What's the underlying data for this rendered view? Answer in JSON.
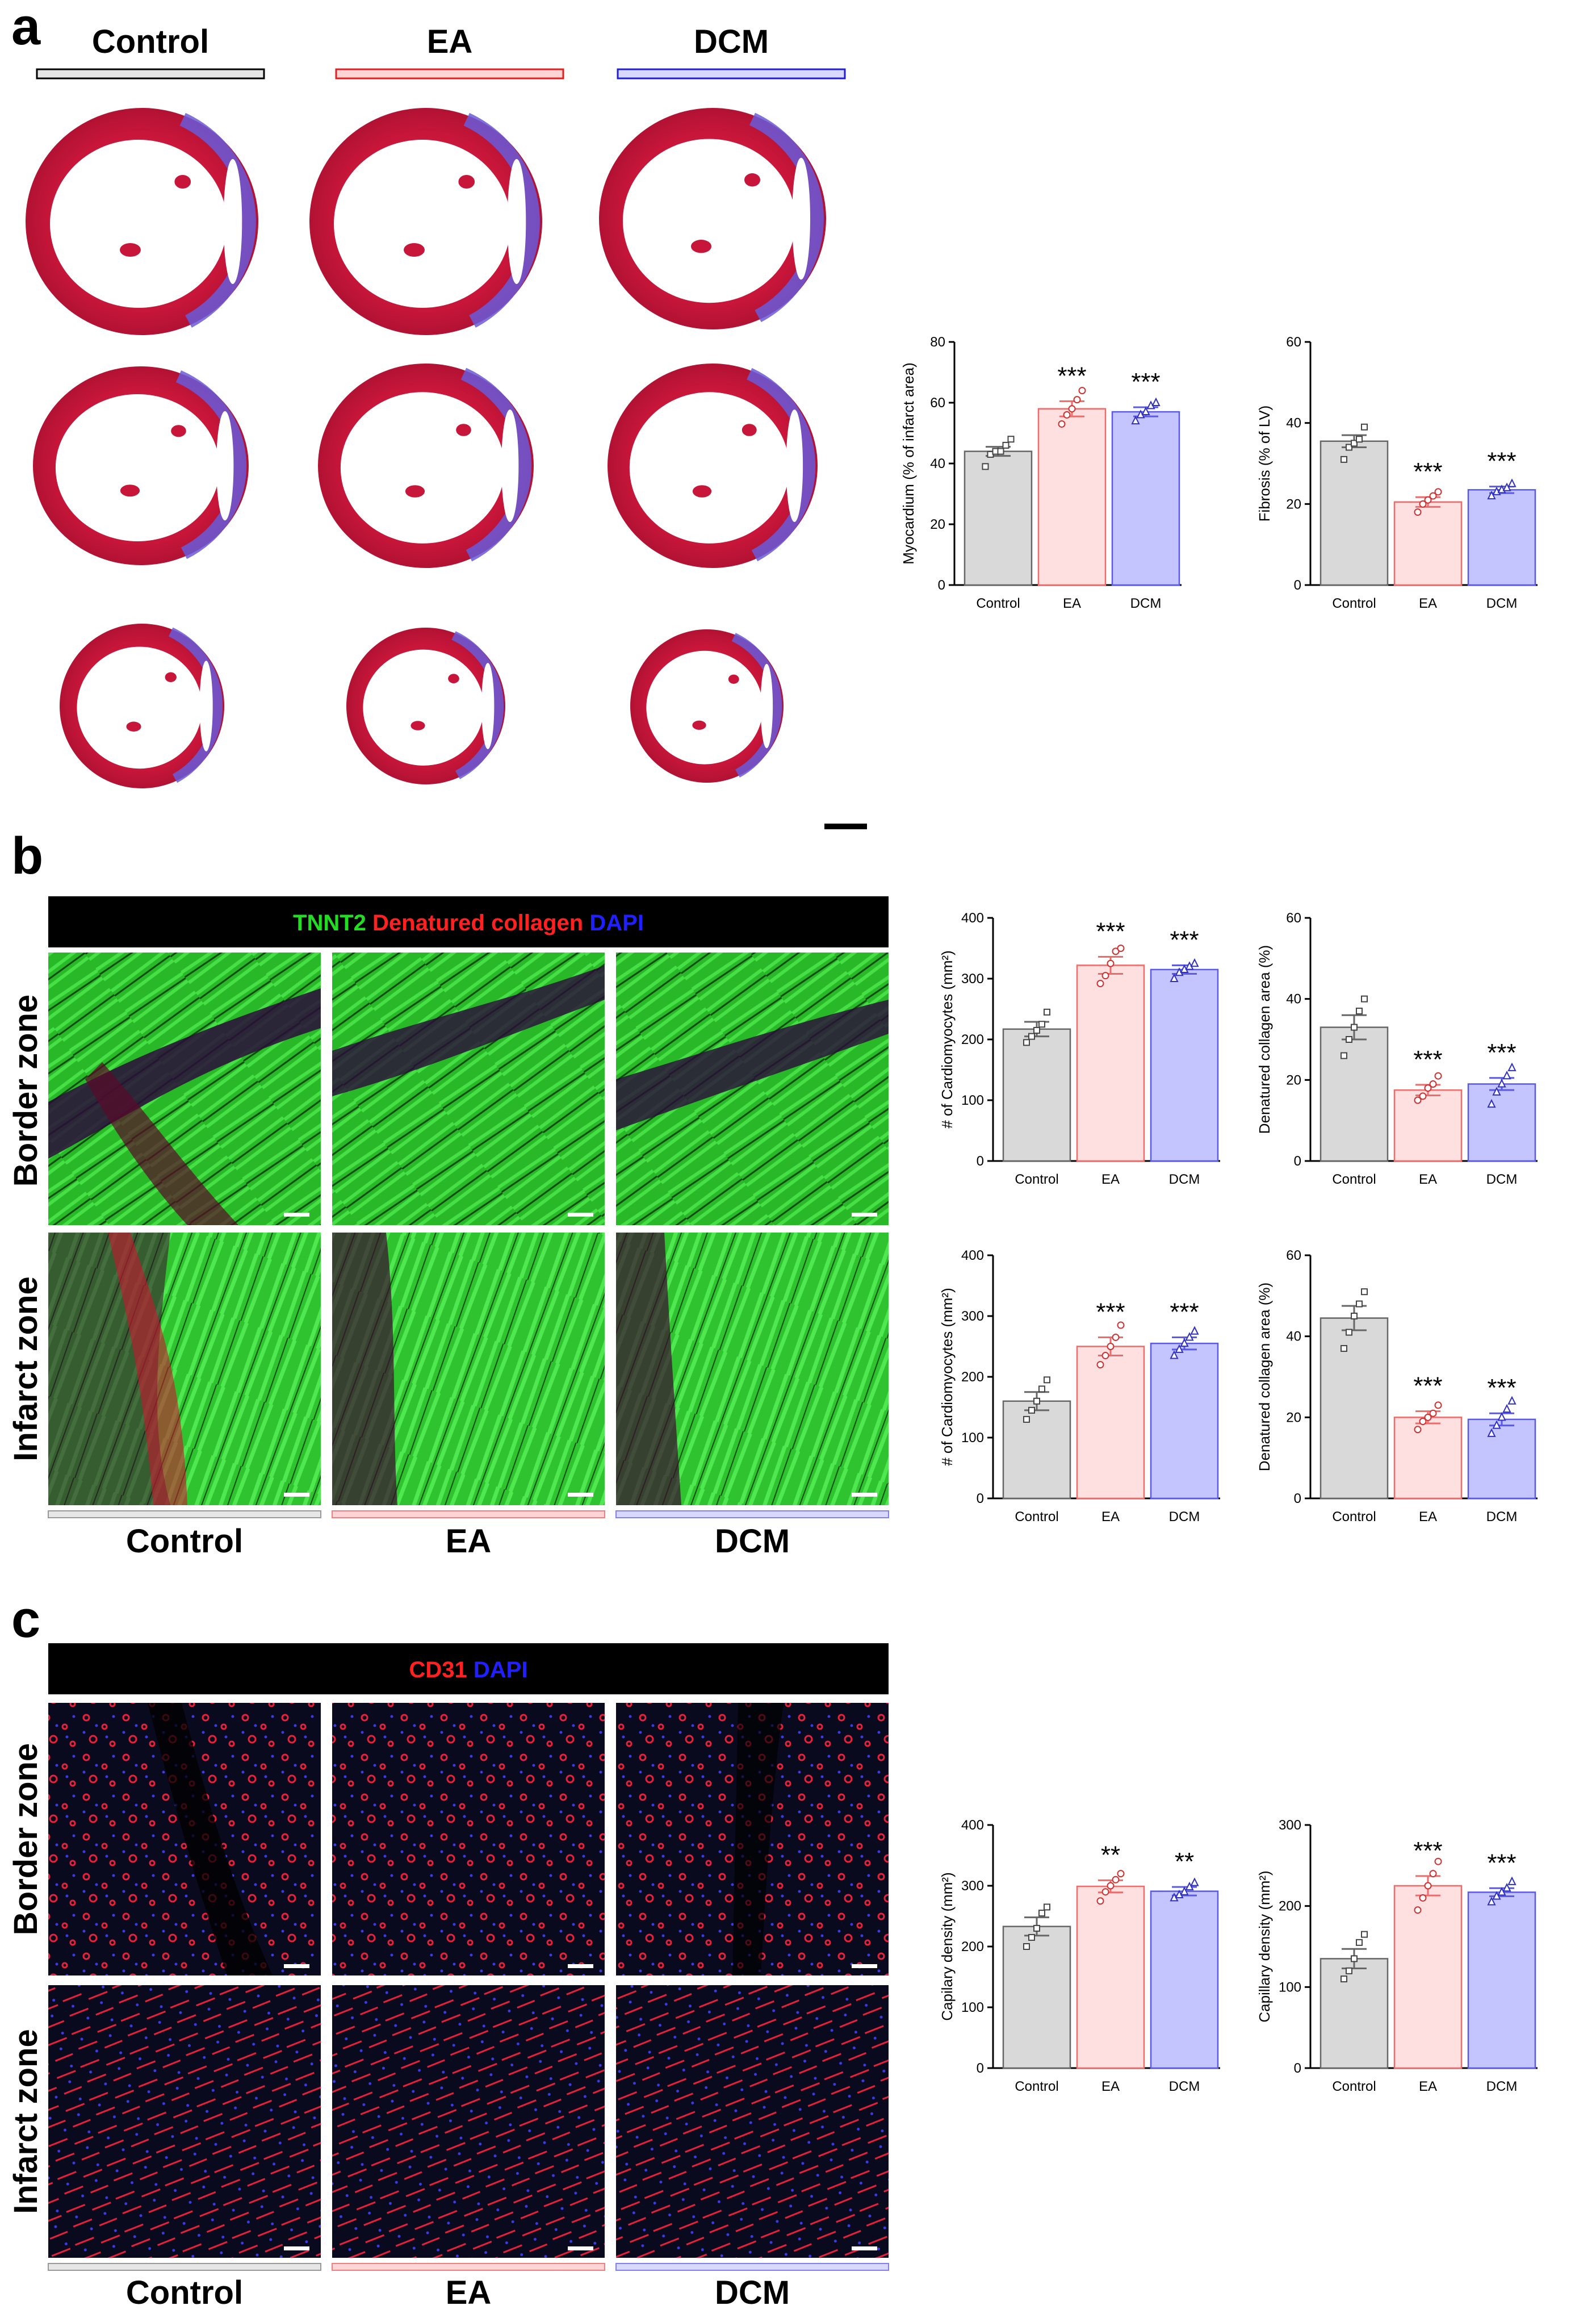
{
  "panels": {
    "a": "a",
    "b": "b",
    "c": "c"
  },
  "groups": [
    "Control",
    "EA",
    "DCM"
  ],
  "zones": {
    "border": "Border zone",
    "infarct": "Infarct zone"
  },
  "stains": {
    "b": [
      {
        "text": "TNNT2",
        "color": "#22dd22"
      },
      {
        "text": "Denatured collagen",
        "color": "#ff2020"
      },
      {
        "text": "DAPI",
        "color": "#2020ff"
      }
    ],
    "c": [
      {
        "text": "CD31",
        "color": "#ff2020"
      },
      {
        "text": "DAPI",
        "color": "#2020ff"
      }
    ]
  },
  "colors": {
    "control": "#bfbfbf",
    "control_bar": "#d9d9d9",
    "ea": "#f06a6a",
    "ea_bar": "#ffe0e0",
    "dcm": "#5a5ae6",
    "dcm_bar": "#c4c4ff",
    "tissue_red": "#c8163a",
    "tissue_blue": "#5a4fd0",
    "tnnt2_green": "#2fc42f",
    "cd31_red": "#e8203a"
  },
  "chart_data": [
    {
      "id": "a1",
      "type": "bar",
      "ylabel": "Myocardium (% of infarct area)",
      "ylim": [
        0,
        80
      ],
      "yticks": [
        0,
        20,
        40,
        60,
        80
      ],
      "categories": [
        "Control",
        "EA",
        "DCM"
      ],
      "values": [
        44,
        58,
        57
      ],
      "errors": [
        1.5,
        2.5,
        1.5
      ],
      "significance": [
        "",
        "***",
        "***"
      ],
      "points": [
        [
          39,
          43,
          44,
          44,
          46,
          48
        ],
        [
          53,
          56,
          58,
          61,
          64
        ],
        [
          54,
          56,
          57,
          59,
          60
        ]
      ]
    },
    {
      "id": "a2",
      "type": "bar",
      "ylabel": "Fibrosis (% of LV)",
      "ylim": [
        0,
        60
      ],
      "yticks": [
        0,
        20,
        40,
        60
      ],
      "categories": [
        "Control",
        "EA",
        "DCM"
      ],
      "values": [
        35.5,
        20.5,
        23.5
      ],
      "errors": [
        1.5,
        1.2,
        0.8
      ],
      "significance": [
        "",
        "***",
        "***"
      ],
      "points": [
        [
          31,
          34,
          35,
          36,
          39
        ],
        [
          18,
          20,
          21,
          22,
          23
        ],
        [
          22,
          23,
          23.5,
          24,
          25
        ]
      ]
    },
    {
      "id": "b1",
      "type": "bar",
      "ylabel": "# of Cardiomyocytes (mm²)",
      "ylim": [
        0,
        400
      ],
      "yticks": [
        0,
        100,
        200,
        300,
        400
      ],
      "categories": [
        "Control",
        "EA",
        "DCM"
      ],
      "values": [
        217,
        322,
        315
      ],
      "errors": [
        12,
        14,
        7
      ],
      "significance": [
        "",
        "***",
        "***"
      ],
      "points": [
        [
          195,
          205,
          215,
          225,
          245
        ],
        [
          292,
          305,
          325,
          345,
          350
        ],
        [
          300,
          310,
          315,
          320,
          325
        ]
      ]
    },
    {
      "id": "b2",
      "type": "bar",
      "ylabel": "Denatured collagen area (%)",
      "ylim": [
        0,
        60
      ],
      "yticks": [
        0,
        20,
        40,
        60
      ],
      "categories": [
        "Control",
        "EA",
        "DCM"
      ],
      "values": [
        33,
        17.5,
        19
      ],
      "errors": [
        3,
        1.3,
        1.5
      ],
      "significance": [
        "",
        "***",
        "***"
      ],
      "points": [
        [
          26,
          30,
          33,
          37,
          40
        ],
        [
          15,
          16,
          18,
          19,
          21
        ],
        [
          14,
          17,
          19,
          21,
          23
        ]
      ]
    },
    {
      "id": "b3",
      "type": "bar",
      "ylabel": "# of Cardiomyocytes (mm²)",
      "ylim": [
        0,
        400
      ],
      "yticks": [
        0,
        100,
        200,
        300,
        400
      ],
      "categories": [
        "Control",
        "EA",
        "DCM"
      ],
      "values": [
        160,
        250,
        255
      ],
      "errors": [
        15,
        15,
        10
      ],
      "significance": [
        "",
        "***",
        "***"
      ],
      "points": [
        [
          130,
          145,
          160,
          180,
          195
        ],
        [
          220,
          235,
          250,
          265,
          285
        ],
        [
          235,
          245,
          255,
          265,
          275
        ]
      ]
    },
    {
      "id": "b4",
      "type": "bar",
      "ylabel": "Denatured collagen area (%)",
      "ylim": [
        0,
        60
      ],
      "yticks": [
        0,
        20,
        40,
        60
      ],
      "categories": [
        "Control",
        "EA",
        "DCM"
      ],
      "values": [
        44.5,
        20,
        19.5
      ],
      "errors": [
        3,
        1.5,
        1.5
      ],
      "significance": [
        "",
        "***",
        "***"
      ],
      "points": [
        [
          37,
          41,
          45,
          48,
          51
        ],
        [
          17,
          19,
          20,
          21,
          23
        ],
        [
          16,
          18,
          20,
          22,
          24
        ]
      ]
    },
    {
      "id": "c1",
      "type": "bar",
      "ylabel": "Capilary density (mm²)",
      "ylim": [
        0,
        400
      ],
      "yticks": [
        0,
        100,
        200,
        300,
        400
      ],
      "categories": [
        "Control",
        "EA",
        "DCM"
      ],
      "values": [
        233,
        299,
        291
      ],
      "errors": [
        15,
        10,
        7
      ],
      "significance": [
        "",
        "**",
        "**"
      ],
      "points": [
        [
          200,
          215,
          230,
          255,
          265
        ],
        [
          275,
          290,
          300,
          310,
          320
        ],
        [
          280,
          285,
          290,
          298,
          305
        ]
      ]
    },
    {
      "id": "c2",
      "type": "bar",
      "ylabel": "Capillary density (mm²)",
      "ylim": [
        0,
        300
      ],
      "yticks": [
        0,
        100,
        200,
        300
      ],
      "categories": [
        "Control",
        "EA",
        "DCM"
      ],
      "values": [
        135,
        225,
        217
      ],
      "errors": [
        12,
        12,
        5
      ],
      "significance": [
        "",
        "***",
        "***"
      ],
      "points": [
        [
          110,
          120,
          135,
          155,
          165
        ],
        [
          195,
          210,
          225,
          240,
          255
        ],
        [
          205,
          212,
          217,
          222,
          230
        ]
      ]
    }
  ]
}
